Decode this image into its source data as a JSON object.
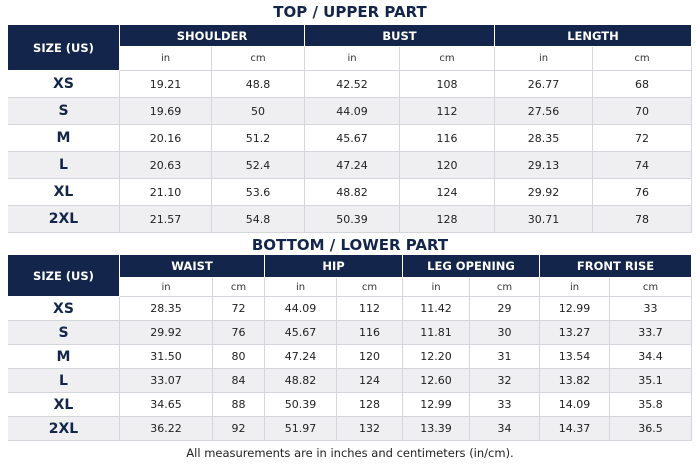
{
  "top": {
    "title": "TOP / UPPER PART",
    "size_header": "SIZE (US)",
    "groups": [
      "SHOULDER",
      "BUST",
      "LENGTH"
    ],
    "units": [
      "in",
      "cm",
      "in",
      "cm",
      "in",
      "cm"
    ],
    "rows": [
      [
        "XS",
        "19.21",
        "48.8",
        "42.52",
        "108",
        "26.77",
        "68"
      ],
      [
        "S",
        "19.69",
        "50",
        "44.09",
        "112",
        "27.56",
        "70"
      ],
      [
        "M",
        "20.16",
        "51.2",
        "45.67",
        "116",
        "28.35",
        "72"
      ],
      [
        "L",
        "20.63",
        "52.4",
        "47.24",
        "120",
        "29.13",
        "74"
      ],
      [
        "XL",
        "21.10",
        "53.6",
        "48.82",
        "124",
        "29.92",
        "76"
      ],
      [
        "2XL",
        "21.57",
        "54.8",
        "50.39",
        "128",
        "30.71",
        "78"
      ]
    ]
  },
  "bottom": {
    "title": "BOTTOM / LOWER PART",
    "size_header": "SIZE (US)",
    "groups": [
      "WAIST",
      "HIP",
      "LEG OPENING",
      "FRONT RISE"
    ],
    "units": [
      "in",
      "cm",
      "in",
      "cm",
      "in",
      "cm",
      "in",
      "cm"
    ],
    "rows": [
      [
        "XS",
        "28.35",
        "72",
        "44.09",
        "112",
        "11.42",
        "29",
        "12.99",
        "33"
      ],
      [
        "S",
        "29.92",
        "76",
        "45.67",
        "116",
        "11.81",
        "30",
        "13.27",
        "33.7"
      ],
      [
        "M",
        "31.50",
        "80",
        "47.24",
        "120",
        "12.20",
        "31",
        "13.54",
        "34.4"
      ],
      [
        "L",
        "33.07",
        "84",
        "48.82",
        "124",
        "12.60",
        "32",
        "13.82",
        "35.1"
      ],
      [
        "XL",
        "34.65",
        "88",
        "50.39",
        "128",
        "12.99",
        "33",
        "14.09",
        "35.8"
      ],
      [
        "2XL",
        "36.22",
        "92",
        "51.97",
        "132",
        "13.39",
        "34",
        "14.37",
        "36.5"
      ]
    ]
  },
  "footnote": "All measurements are in inches and centimeters (in/cm)."
}
